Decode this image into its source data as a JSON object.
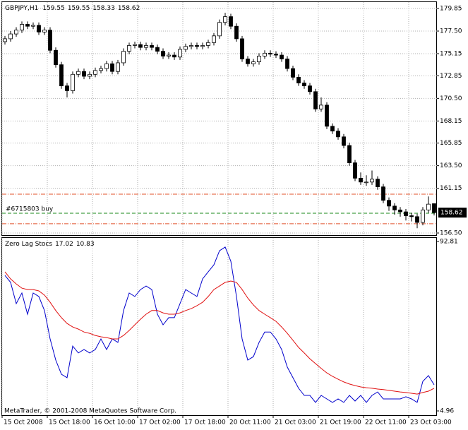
{
  "chart_data": [
    {
      "type": "candlestick",
      "title": "GBPJPY,H1",
      "up_color": "#ffffff",
      "down_color": "#000000",
      "grid": true,
      "xlim": [
        0,
        154
      ],
      "x": [
        1,
        3,
        5,
        7,
        9,
        11,
        13,
        15,
        17,
        19,
        21,
        23,
        25,
        27,
        29,
        31,
        33,
        35,
        37,
        39,
        41,
        43,
        45,
        47,
        49,
        51,
        53,
        55,
        57,
        59,
        61,
        63,
        65,
        67,
        69,
        71,
        73,
        75,
        77,
        79,
        81,
        83,
        85,
        87,
        89,
        91,
        93,
        95,
        97,
        99,
        101,
        103,
        105,
        107,
        109,
        111,
        113,
        115,
        117,
        119,
        121,
        123,
        125,
        127,
        129,
        131,
        133,
        135,
        137,
        139,
        141,
        143,
        145,
        147,
        149,
        151,
        153
      ],
      "open": [
        176.4,
        176.7,
        177.2,
        177.6,
        178.2,
        178.0,
        178.1,
        177.4,
        177.6,
        175.5,
        174.0,
        171.8,
        171.3,
        173.0,
        173.3,
        172.8,
        173.0,
        173.4,
        173.6,
        174.1,
        173.3,
        174.2,
        175.4,
        176.0,
        176.1,
        175.8,
        176.0,
        175.8,
        175.4,
        174.9,
        175.0,
        174.8,
        175.6,
        175.9,
        176.0,
        175.9,
        176.0,
        176.3,
        177.0,
        178.4,
        179.0,
        178.0,
        176.7,
        174.6,
        174.1,
        174.3,
        174.9,
        175.2,
        175.1,
        175.0,
        174.6,
        173.6,
        172.7,
        172.1,
        171.8,
        171.2,
        169.4,
        169.8,
        167.6,
        167.1,
        166.5,
        165.6,
        163.8,
        162.2,
        161.8,
        161.8,
        162.1,
        161.3,
        159.9,
        159.3,
        158.9,
        158.7,
        158.3,
        158.2,
        157.6,
        158.9,
        159.55
      ],
      "high": [
        177.0,
        177.5,
        177.9,
        178.5,
        178.5,
        178.4,
        178.4,
        177.9,
        177.9,
        175.8,
        174.3,
        172.1,
        173.3,
        173.6,
        173.6,
        173.3,
        173.7,
        173.9,
        174.4,
        174.4,
        174.5,
        175.7,
        176.3,
        176.4,
        176.4,
        176.3,
        176.3,
        176.1,
        175.7,
        175.3,
        175.3,
        175.9,
        176.2,
        176.3,
        176.3,
        176.3,
        176.6,
        177.3,
        178.7,
        179.4,
        179.3,
        178.3,
        177.0,
        174.9,
        174.6,
        175.2,
        175.5,
        175.5,
        175.4,
        175.3,
        174.9,
        173.9,
        173.0,
        172.4,
        172.1,
        171.5,
        170.6,
        170.1,
        167.9,
        167.4,
        166.8,
        165.9,
        164.1,
        162.8,
        162.5,
        163.0,
        162.4,
        161.6,
        160.2,
        159.6,
        159.2,
        159.0,
        158.6,
        158.5,
        159.2,
        160.3,
        159.55
      ],
      "low": [
        176.1,
        176.4,
        176.9,
        177.3,
        177.7,
        177.7,
        177.1,
        177.1,
        175.2,
        173.7,
        171.5,
        170.6,
        171.0,
        172.7,
        172.5,
        172.5,
        172.7,
        173.1,
        173.3,
        173.0,
        173.0,
        173.9,
        175.1,
        175.7,
        175.5,
        175.5,
        175.5,
        175.1,
        174.6,
        174.6,
        174.5,
        174.5,
        175.3,
        175.6,
        175.6,
        175.6,
        175.7,
        176.0,
        176.7,
        178.1,
        177.7,
        176.4,
        174.3,
        173.8,
        173.8,
        174.0,
        174.6,
        174.8,
        174.7,
        174.3,
        173.3,
        172.4,
        171.8,
        171.5,
        170.9,
        169.1,
        169.1,
        167.3,
        166.8,
        166.2,
        165.3,
        163.5,
        161.9,
        161.5,
        161.4,
        161.5,
        161.0,
        159.6,
        158.8,
        158.4,
        158.2,
        157.8,
        157.7,
        157.0,
        157.3,
        158.6,
        158.33
      ],
      "close": [
        176.7,
        177.2,
        177.6,
        178.2,
        178.0,
        178.1,
        177.4,
        177.6,
        175.5,
        174.0,
        171.8,
        171.3,
        173.0,
        173.3,
        172.8,
        173.0,
        173.4,
        173.6,
        174.1,
        173.3,
        174.2,
        175.4,
        176.0,
        176.1,
        175.8,
        176.0,
        175.8,
        175.4,
        174.9,
        175.0,
        174.8,
        175.6,
        175.9,
        176.0,
        175.9,
        176.0,
        176.3,
        177.0,
        178.4,
        179.0,
        178.0,
        176.7,
        174.6,
        174.1,
        174.3,
        174.9,
        175.2,
        175.1,
        175.0,
        174.6,
        173.6,
        172.7,
        172.1,
        171.8,
        171.2,
        169.4,
        169.8,
        167.6,
        167.1,
        166.5,
        165.6,
        163.8,
        162.2,
        161.8,
        161.8,
        162.1,
        161.3,
        159.9,
        159.3,
        158.9,
        158.7,
        158.3,
        158.2,
        157.6,
        158.9,
        159.5,
        158.62
      ],
      "ylim": [
        156.5,
        179.85
      ],
      "yticks": [
        179.85,
        {
          "value": 177.5,
          "label": "177.50"
        },
        175.15,
        172.85,
        {
          "value": 170.5,
          "label": "170.50"
        },
        168.15,
        165.85,
        {
          "value": 163.5,
          "label": "163.50"
        },
        161.15,
        {
          "value": 156.5,
          "label": "156.50"
        }
      ],
      "levels": [
        160.54,
        157.46
      ],
      "level_color": "#e0502a",
      "order": {
        "label": "#6715803 buy",
        "price": 158.56,
        "color": "#1a8a1a"
      }
    },
    {
      "type": "line",
      "title": "Zero Lag Stocs",
      "readings": [
        17.02,
        10.83
      ],
      "xlim": [
        0,
        154
      ],
      "xticks": [
        {
          "value": 0,
          "label": "15 Oct 2008"
        },
        {
          "value": 16,
          "label": "15 Oct 18:00"
        },
        {
          "value": 32,
          "label": "16 Oct 10:00"
        },
        {
          "value": 48,
          "label": "17 Oct 02:00"
        },
        {
          "value": 64,
          "label": "17 Oct 18:00"
        },
        {
          "value": 80,
          "label": "20 Oct 11:00"
        },
        {
          "value": 96,
          "label": "21 Oct 03:00"
        },
        {
          "value": 112,
          "label": "21 Oct 19:00"
        },
        {
          "value": 128,
          "label": "22 Oct 11:00"
        },
        {
          "value": 144,
          "label": "23 Oct 03:00"
        }
      ],
      "ylim": [
        4.96,
        92.81
      ],
      "yticks": [
        92.81,
        4.96
      ],
      "series": [
        {
          "color": "#0000cc",
          "values": [
            75.2,
            71.6,
            60.6,
            66.1,
            55.1,
            66.1,
            64.3,
            57.0,
            42.3,
            31.3,
            24.0,
            22.2,
            38.6,
            35.0,
            36.8,
            35.0,
            36.8,
            42.3,
            36.8,
            42.3,
            40.5,
            57.0,
            66.1,
            64.3,
            67.9,
            69.7,
            67.9,
            55.1,
            49.6,
            53.3,
            53.3,
            60.6,
            67.9,
            66.1,
            64.3,
            73.4,
            77.1,
            80.7,
            88.0,
            89.9,
            82.6,
            64.3,
            42.3,
            31.3,
            33.1,
            40.5,
            45.9,
            45.9,
            42.3,
            36.8,
            27.7,
            22.2,
            16.7,
            13.0,
            13.0,
            9.4,
            13.0,
            11.2,
            9.4,
            11.2,
            9.4,
            13.0,
            10.1,
            13.0,
            9.4,
            13.0,
            14.8,
            11.2,
            11.2,
            11.2,
            11.2,
            12.3,
            11.2,
            9.4,
            20.3,
            23.3,
            18.5
          ]
        },
        {
          "color": "#e01010",
          "values": [
            77.1,
            73.4,
            70.8,
            68.6,
            67.9,
            67.9,
            67.2,
            65.0,
            61.3,
            57.0,
            53.3,
            50.3,
            48.5,
            47.4,
            45.9,
            45.2,
            44.1,
            43.4,
            43.0,
            42.3,
            42.3,
            44.1,
            46.7,
            49.6,
            52.5,
            55.1,
            57.0,
            57.0,
            55.8,
            55.1,
            55.1,
            55.8,
            57.0,
            58.0,
            59.5,
            61.3,
            64.3,
            67.9,
            69.7,
            71.6,
            72.3,
            71.6,
            67.9,
            63.5,
            59.9,
            57.0,
            55.1,
            53.3,
            51.4,
            48.5,
            45.2,
            41.6,
            37.9,
            35.0,
            32.0,
            29.5,
            27.0,
            24.7,
            22.9,
            21.4,
            20.0,
            18.9,
            18.1,
            17.4,
            17.0,
            16.7,
            16.3,
            16.0,
            15.6,
            15.2,
            14.8,
            14.5,
            14.1,
            13.7,
            14.5,
            15.2,
            16.7
          ]
        }
      ]
    }
  ],
  "footer": "MetaTrader, © 2001-2008 MetaQuotes Software Corp."
}
